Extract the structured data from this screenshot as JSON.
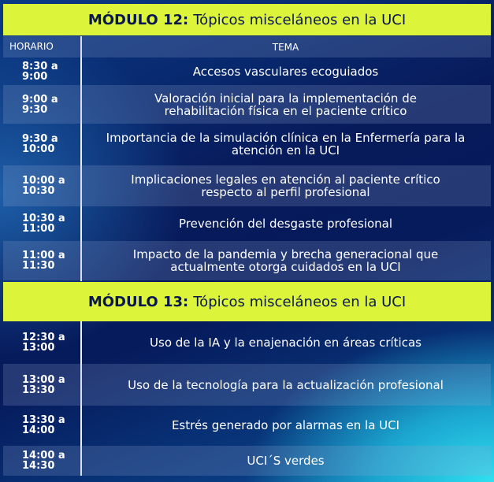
{
  "module12": {
    "label": "MÓDULO 12:",
    "title": "Tópicos misceláneos en la UCI"
  },
  "header": {
    "time": "HORARIO",
    "topic": "TEMA"
  },
  "rows12": [
    {
      "time1": "8:30 a",
      "time2": "9:00",
      "topic": "Accesos vasculares ecoguiados"
    },
    {
      "time1": "9:00 a",
      "time2": "9:30",
      "topic": "Valoración inicial para la implementación de rehabilitación física en el paciente crítico"
    },
    {
      "time1": "9:30 a",
      "time2": "10:00",
      "topic": "Importancia de la simulación clínica en la Enfermería para la atención en la UCI"
    },
    {
      "time1": "10:00 a",
      "time2": "10:30",
      "topic": "Implicaciones legales en atención al paciente crítico respecto al perfil profesional"
    },
    {
      "time1": "10:30 a",
      "time2": "11:00",
      "topic": "Prevención del desgaste profesional"
    },
    {
      "time1": "11:00 a",
      "time2": "11:30",
      "topic": "Impacto de la pandemia y brecha generacional que actualmente otorga cuidados en la UCI"
    }
  ],
  "module13": {
    "label": "MÓDULO 13:",
    "title": "Tópicos misceláneos en la UCI"
  },
  "rows13": [
    {
      "time1": "12:30 a",
      "time2": "13:00",
      "topic": "Uso de la IA y la enajenación en áreas críticas"
    },
    {
      "time1": "13:00 a",
      "time2": "13:30",
      "topic": "Uso de la tecnología para la actualización profesional"
    },
    {
      "time1": "13:30 a",
      "time2": "14:00",
      "topic": "Estrés generado por alarmas en la UCI"
    },
    {
      "time1": "14:00 a",
      "time2": "14:30",
      "topic": "UCI´S verdes"
    }
  ],
  "colors": {
    "module_bar": "#dcf53a",
    "module_text": "#0a1650",
    "background": "#071a5a",
    "accent_cyan": "#2fe0f0"
  }
}
